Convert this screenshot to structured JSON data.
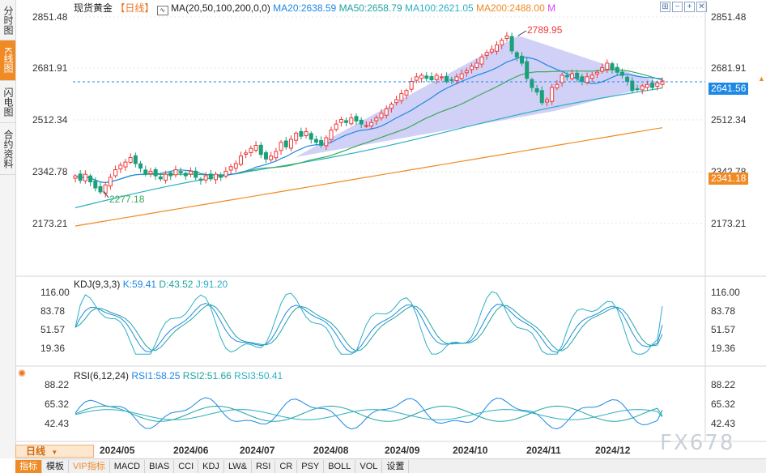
{
  "left_tabs": [
    {
      "label": "分时图",
      "active": false
    },
    {
      "label": "K线图",
      "active": true
    },
    {
      "label": "闪电图",
      "active": false
    },
    {
      "label": "合约资料",
      "active": false
    }
  ],
  "header": {
    "symbol": "现货黄金",
    "period_tag": "【日线】",
    "ma_label": "MA(20,50,100,200,0,0)",
    "ma20": "MA20:2638.59",
    "ma50": "MA50:2658.79",
    "ma100": "MA100:2621.05",
    "ma200": "MA200:2488.00",
    "ma_extra": "M"
  },
  "toolbar_icons": [
    "grid-icon",
    "zoom-out-icon",
    "zoom-in-icon",
    "close-icon"
  ],
  "price_panel": {
    "axis_ticks": [
      "2851.48",
      "2681.91",
      "2512.34",
      "2342.78",
      "2173.21"
    ],
    "last_price": "2641.56",
    "ma200_price": "2341.18",
    "high_label": "2789.95",
    "low_label": "2277.18"
  },
  "kdj_panel": {
    "label": "KDJ(9,3,3)",
    "k": "K:59.41",
    "d": "D:43.52",
    "j": "J:91.20",
    "axis_ticks": [
      "116.00",
      "83.78",
      "51.57",
      "19.36"
    ]
  },
  "rsi_panel": {
    "label": "RSI(6,12,24)",
    "rsi1": "RSI1:58.25",
    "rsi2": "RSI2:51.66",
    "rsi3": "RSI3:50.41",
    "axis_ticks": [
      "88.22",
      "65.32",
      "42.43"
    ]
  },
  "x_axis": {
    "labels": [
      "2024/05",
      "2024/06",
      "2024/07",
      "2024/08",
      "2024/09",
      "2024/10",
      "2024/11",
      "2024/12"
    ]
  },
  "period_selector": "日线",
  "bottom_buttons": [
    "指标",
    "模板",
    "VIP指标",
    "MACD",
    "BIAS",
    "CCI",
    "KDJ",
    "LW&",
    "RSI",
    "CR",
    "PSY",
    "BOLL",
    "VOL",
    "设置"
  ],
  "watermark": "FX678",
  "colors": {
    "up": "#ef3a3a",
    "down": "#1aa07a",
    "ma20": "#1e88e5",
    "ma50": "#20a39e",
    "ma100": "#3aaa5a",
    "ma200": "#f08a24",
    "accent": "#f08a24",
    "triangle_fill": "#c9c8f4"
  },
  "chart_data": {
    "type": "candlestick",
    "x": [
      "2024/05",
      "2024/06",
      "2024/07",
      "2024/08",
      "2024/09",
      "2024/10",
      "2024/11",
      "2024/12"
    ],
    "price_range": [
      2173.21,
      2851.48
    ],
    "series_close": [
      2330,
      2315,
      2335,
      2310,
      2290,
      2277,
      2300,
      2325,
      2350,
      2365,
      2375,
      2390,
      2370,
      2355,
      2335,
      2345,
      2330,
      2320,
      2335,
      2330,
      2350,
      2340,
      2330,
      2345,
      2325,
      2315,
      2330,
      2320,
      2335,
      2325,
      2345,
      2360,
      2370,
      2395,
      2405,
      2420,
      2430,
      2400,
      2385,
      2395,
      2410,
      2440,
      2425,
      2450,
      2470,
      2460,
      2475,
      2450,
      2440,
      2430,
      2455,
      2480,
      2500,
      2515,
      2505,
      2520,
      2510,
      2500,
      2495,
      2505,
      2520,
      2535,
      2550,
      2565,
      2580,
      2600,
      2610,
      2640,
      2655,
      2660,
      2650,
      2645,
      2660,
      2655,
      2640,
      2645,
      2655,
      2665,
      2675,
      2690,
      2700,
      2720,
      2735,
      2745,
      2760,
      2775,
      2789,
      2740,
      2720,
      2700,
      2650,
      2620,
      2605,
      2570,
      2580,
      2620,
      2630,
      2660,
      2655,
      2665,
      2650,
      2640,
      2655,
      2660,
      2670,
      2685,
      2700,
      2680,
      2670,
      2660,
      2640,
      2610,
      2615,
      2625,
      2630,
      2620,
      2635,
      2641.56
    ],
    "ma20_end": 2638.59,
    "ma50_end": 2658.79,
    "ma100_end": 2621.05,
    "ma200_end": 2488.0,
    "kdj": {
      "k": 59.41,
      "d": 43.52,
      "j": 91.2,
      "range": [
        19.36,
        116.0
      ]
    },
    "rsi": {
      "rsi1": 58.25,
      "rsi2": 51.66,
      "rsi3": 50.41,
      "range": [
        42.43,
        88.22
      ]
    }
  }
}
